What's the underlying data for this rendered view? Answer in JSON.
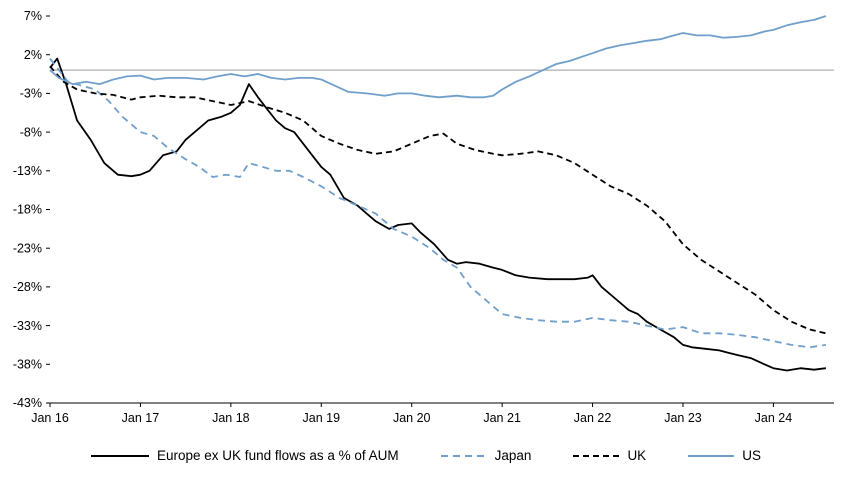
{
  "chart_data": {
    "type": "line",
    "title": "",
    "xlabel": "",
    "ylabel": "",
    "grid": false,
    "legend_position": "bottom",
    "xlim": [
      2016.0,
      2024.67
    ],
    "ylim": [
      -43,
      7
    ],
    "zero_line": 0,
    "zero_line_color": "#9b9b9b",
    "axis_color": "#000000",
    "y_ticks": [
      {
        "value": 7,
        "label": "7%"
      },
      {
        "value": 2,
        "label": "2%"
      },
      {
        "value": -3,
        "label": "-3%"
      },
      {
        "value": -8,
        "label": "-8%"
      },
      {
        "value": -13,
        "label": "-13%"
      },
      {
        "value": -18,
        "label": "-18%"
      },
      {
        "value": -23,
        "label": "-23%"
      },
      {
        "value": -28,
        "label": "-28%"
      },
      {
        "value": -33,
        "label": "-33%"
      },
      {
        "value": -38,
        "label": "-38%"
      },
      {
        "value": -43,
        "label": "-43%"
      }
    ],
    "x_ticks": [
      {
        "value": 2016,
        "label": "Jan 16"
      },
      {
        "value": 2017,
        "label": "Jan 17"
      },
      {
        "value": 2018,
        "label": "Jan 18"
      },
      {
        "value": 2019,
        "label": "Jan 19"
      },
      {
        "value": 2020,
        "label": "Jan 20"
      },
      {
        "value": 2021,
        "label": "Jan 21"
      },
      {
        "value": 2022,
        "label": "Jan 22"
      },
      {
        "value": 2023,
        "label": "Jan 23"
      },
      {
        "value": 2024,
        "label": "Jan 24"
      }
    ],
    "series": [
      {
        "name": "Europe ex UK fund flows as a % of AUM",
        "color": "#000000",
        "dash": null,
        "width": 1.8,
        "points": [
          [
            2016.0,
            0.3
          ],
          [
            2016.08,
            1.5
          ],
          [
            2016.17,
            -1.5
          ],
          [
            2016.3,
            -6.5
          ],
          [
            2016.45,
            -9.0
          ],
          [
            2016.6,
            -12.0
          ],
          [
            2016.75,
            -13.5
          ],
          [
            2016.9,
            -13.7
          ],
          [
            2017.0,
            -13.5
          ],
          [
            2017.1,
            -13.0
          ],
          [
            2017.25,
            -11.0
          ],
          [
            2017.4,
            -10.5
          ],
          [
            2017.5,
            -9.0
          ],
          [
            2017.6,
            -8.0
          ],
          [
            2017.75,
            -6.5
          ],
          [
            2017.9,
            -6.0
          ],
          [
            2018.0,
            -5.5
          ],
          [
            2018.1,
            -4.5
          ],
          [
            2018.2,
            -1.8
          ],
          [
            2018.3,
            -3.5
          ],
          [
            2018.4,
            -5.0
          ],
          [
            2018.5,
            -6.5
          ],
          [
            2018.6,
            -7.5
          ],
          [
            2018.7,
            -8.0
          ],
          [
            2018.8,
            -9.5
          ],
          [
            2018.9,
            -11.0
          ],
          [
            2019.0,
            -12.5
          ],
          [
            2019.1,
            -13.5
          ],
          [
            2019.25,
            -16.5
          ],
          [
            2019.4,
            -17.5
          ],
          [
            2019.5,
            -18.5
          ],
          [
            2019.6,
            -19.5
          ],
          [
            2019.75,
            -20.5
          ],
          [
            2019.85,
            -20.0
          ],
          [
            2020.0,
            -19.8
          ],
          [
            2020.1,
            -21.0
          ],
          [
            2020.25,
            -22.5
          ],
          [
            2020.4,
            -24.5
          ],
          [
            2020.5,
            -25.0
          ],
          [
            2020.6,
            -24.8
          ],
          [
            2020.75,
            -25.0
          ],
          [
            2020.9,
            -25.5
          ],
          [
            2021.0,
            -25.8
          ],
          [
            2021.15,
            -26.5
          ],
          [
            2021.3,
            -26.8
          ],
          [
            2021.5,
            -27.0
          ],
          [
            2021.65,
            -27.0
          ],
          [
            2021.8,
            -27.0
          ],
          [
            2021.95,
            -26.8
          ],
          [
            2022.0,
            -26.5
          ],
          [
            2022.1,
            -28.0
          ],
          [
            2022.25,
            -29.5
          ],
          [
            2022.4,
            -31.0
          ],
          [
            2022.5,
            -31.5
          ],
          [
            2022.6,
            -32.5
          ],
          [
            2022.75,
            -33.5
          ],
          [
            2022.9,
            -34.5
          ],
          [
            2023.0,
            -35.5
          ],
          [
            2023.1,
            -35.8
          ],
          [
            2023.25,
            -36.0
          ],
          [
            2023.4,
            -36.2
          ],
          [
            2023.5,
            -36.5
          ],
          [
            2023.6,
            -36.8
          ],
          [
            2023.75,
            -37.2
          ],
          [
            2023.9,
            -38.0
          ],
          [
            2024.0,
            -38.5
          ],
          [
            2024.15,
            -38.8
          ],
          [
            2024.3,
            -38.5
          ],
          [
            2024.45,
            -38.7
          ],
          [
            2024.58,
            -38.5
          ]
        ]
      },
      {
        "name": "Japan",
        "color": "#6f9fca",
        "dash": "7 5",
        "width": 1.8,
        "points": [
          [
            2016.0,
            1.5
          ],
          [
            2016.1,
            0.0
          ],
          [
            2016.2,
            -1.5
          ],
          [
            2016.35,
            -2.0
          ],
          [
            2016.5,
            -2.5
          ],
          [
            2016.65,
            -4.0
          ],
          [
            2016.8,
            -6.0
          ],
          [
            2017.0,
            -8.0
          ],
          [
            2017.15,
            -8.5
          ],
          [
            2017.3,
            -10.0
          ],
          [
            2017.5,
            -11.5
          ],
          [
            2017.65,
            -12.5
          ],
          [
            2017.8,
            -13.8
          ],
          [
            2017.95,
            -13.5
          ],
          [
            2018.1,
            -13.8
          ],
          [
            2018.2,
            -12.0
          ],
          [
            2018.35,
            -12.5
          ],
          [
            2018.5,
            -13.0
          ],
          [
            2018.65,
            -13.0
          ],
          [
            2018.8,
            -13.8
          ],
          [
            2019.0,
            -15.0
          ],
          [
            2019.2,
            -16.5
          ],
          [
            2019.4,
            -17.5
          ],
          [
            2019.6,
            -18.5
          ],
          [
            2019.8,
            -20.5
          ],
          [
            2020.0,
            -21.5
          ],
          [
            2020.2,
            -23.0
          ],
          [
            2020.35,
            -24.5
          ],
          [
            2020.5,
            -25.5
          ],
          [
            2020.65,
            -28.0
          ],
          [
            2020.8,
            -29.5
          ],
          [
            2021.0,
            -31.5
          ],
          [
            2021.2,
            -32.0
          ],
          [
            2021.4,
            -32.3
          ],
          [
            2021.6,
            -32.5
          ],
          [
            2021.8,
            -32.5
          ],
          [
            2022.0,
            -32.0
          ],
          [
            2022.2,
            -32.3
          ],
          [
            2022.4,
            -32.5
          ],
          [
            2022.6,
            -33.0
          ],
          [
            2022.8,
            -33.5
          ],
          [
            2023.0,
            -33.2
          ],
          [
            2023.2,
            -34.0
          ],
          [
            2023.4,
            -34.0
          ],
          [
            2023.6,
            -34.2
          ],
          [
            2023.8,
            -34.5
          ],
          [
            2024.0,
            -35.0
          ],
          [
            2024.2,
            -35.5
          ],
          [
            2024.4,
            -35.8
          ],
          [
            2024.58,
            -35.5
          ]
        ]
      },
      {
        "name": "UK",
        "color": "#000000",
        "dash": "6 4",
        "width": 1.8,
        "points": [
          [
            2016.0,
            0.5
          ],
          [
            2016.15,
            -1.5
          ],
          [
            2016.3,
            -2.5
          ],
          [
            2016.5,
            -3.0
          ],
          [
            2016.7,
            -3.2
          ],
          [
            2016.9,
            -3.8
          ],
          [
            2017.0,
            -3.5
          ],
          [
            2017.2,
            -3.3
          ],
          [
            2017.4,
            -3.5
          ],
          [
            2017.6,
            -3.5
          ],
          [
            2017.8,
            -4.0
          ],
          [
            2018.0,
            -4.5
          ],
          [
            2018.2,
            -4.0
          ],
          [
            2018.4,
            -4.8
          ],
          [
            2018.6,
            -5.5
          ],
          [
            2018.8,
            -6.5
          ],
          [
            2019.0,
            -8.5
          ],
          [
            2019.2,
            -9.5
          ],
          [
            2019.4,
            -10.3
          ],
          [
            2019.6,
            -10.8
          ],
          [
            2019.8,
            -10.5
          ],
          [
            2020.0,
            -9.5
          ],
          [
            2020.2,
            -8.5
          ],
          [
            2020.35,
            -8.2
          ],
          [
            2020.5,
            -9.5
          ],
          [
            2020.7,
            -10.3
          ],
          [
            2020.9,
            -10.8
          ],
          [
            2021.0,
            -11.0
          ],
          [
            2021.2,
            -10.8
          ],
          [
            2021.4,
            -10.5
          ],
          [
            2021.6,
            -11.0
          ],
          [
            2021.8,
            -12.0
          ],
          [
            2022.0,
            -13.5
          ],
          [
            2022.2,
            -15.0
          ],
          [
            2022.4,
            -16.0
          ],
          [
            2022.6,
            -17.5
          ],
          [
            2022.8,
            -19.5
          ],
          [
            2023.0,
            -22.5
          ],
          [
            2023.2,
            -24.5
          ],
          [
            2023.4,
            -26.0
          ],
          [
            2023.6,
            -27.5
          ],
          [
            2023.8,
            -29.0
          ],
          [
            2024.0,
            -31.0
          ],
          [
            2024.2,
            -32.5
          ],
          [
            2024.4,
            -33.5
          ],
          [
            2024.58,
            -34.0
          ]
        ]
      },
      {
        "name": "US",
        "color": "#6f9fca",
        "dash": null,
        "width": 1.8,
        "points": [
          [
            2016.0,
            0.0
          ],
          [
            2016.1,
            -1.0
          ],
          [
            2016.25,
            -1.8
          ],
          [
            2016.4,
            -1.5
          ],
          [
            2016.55,
            -1.8
          ],
          [
            2016.7,
            -1.2
          ],
          [
            2016.85,
            -0.8
          ],
          [
            2017.0,
            -0.7
          ],
          [
            2017.15,
            -1.2
          ],
          [
            2017.3,
            -1.0
          ],
          [
            2017.5,
            -1.0
          ],
          [
            2017.7,
            -1.2
          ],
          [
            2017.85,
            -0.8
          ],
          [
            2018.0,
            -0.5
          ],
          [
            2018.15,
            -0.8
          ],
          [
            2018.3,
            -0.5
          ],
          [
            2018.45,
            -1.0
          ],
          [
            2018.6,
            -1.2
          ],
          [
            2018.75,
            -1.0
          ],
          [
            2018.9,
            -1.0
          ],
          [
            2019.0,
            -1.2
          ],
          [
            2019.15,
            -2.0
          ],
          [
            2019.3,
            -2.8
          ],
          [
            2019.5,
            -3.0
          ],
          [
            2019.7,
            -3.3
          ],
          [
            2019.85,
            -3.0
          ],
          [
            2020.0,
            -3.0
          ],
          [
            2020.15,
            -3.3
          ],
          [
            2020.3,
            -3.5
          ],
          [
            2020.5,
            -3.3
          ],
          [
            2020.65,
            -3.5
          ],
          [
            2020.8,
            -3.5
          ],
          [
            2020.9,
            -3.3
          ],
          [
            2021.0,
            -2.5
          ],
          [
            2021.15,
            -1.5
          ],
          [
            2021.3,
            -0.8
          ],
          [
            2021.45,
            0.0
          ],
          [
            2021.6,
            0.8
          ],
          [
            2021.75,
            1.2
          ],
          [
            2021.9,
            1.8
          ],
          [
            2022.0,
            2.2
          ],
          [
            2022.15,
            2.8
          ],
          [
            2022.3,
            3.2
          ],
          [
            2022.45,
            3.5
          ],
          [
            2022.6,
            3.8
          ],
          [
            2022.75,
            4.0
          ],
          [
            2022.9,
            4.5
          ],
          [
            2023.0,
            4.8
          ],
          [
            2023.15,
            4.5
          ],
          [
            2023.3,
            4.5
          ],
          [
            2023.45,
            4.2
          ],
          [
            2023.6,
            4.3
          ],
          [
            2023.75,
            4.5
          ],
          [
            2023.9,
            5.0
          ],
          [
            2024.0,
            5.2
          ],
          [
            2024.15,
            5.8
          ],
          [
            2024.3,
            6.2
          ],
          [
            2024.45,
            6.5
          ],
          [
            2024.58,
            7.0
          ]
        ]
      }
    ]
  },
  "legend": {
    "items": [
      {
        "label": "Europe ex UK fund flows as a % of AUM",
        "color": "#000000",
        "dash": null
      },
      {
        "label": "Japan",
        "color": "#6f9fca",
        "dash": "7 5"
      },
      {
        "label": "UK",
        "color": "#000000",
        "dash": "6 4"
      },
      {
        "label": "US",
        "color": "#6f9fca",
        "dash": null
      }
    ]
  }
}
